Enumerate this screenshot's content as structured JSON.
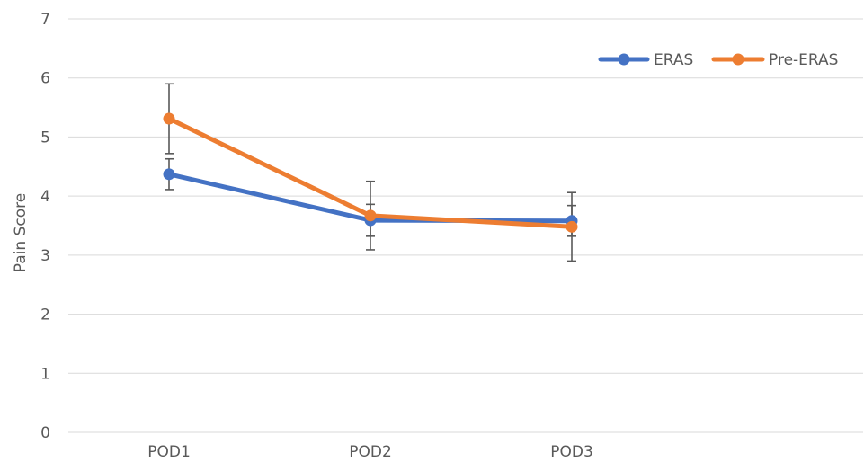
{
  "chart_data": {
    "type": "line",
    "categories": [
      "POD1",
      "POD2",
      "POD3"
    ],
    "ylabel": "Pain Score",
    "xlabel": "",
    "ylim": [
      0,
      7
    ],
    "yticks": [
      0,
      1,
      2,
      3,
      4,
      5,
      6,
      7
    ],
    "grid": true,
    "legend_position": "top-right",
    "series": [
      {
        "name": "ERAS",
        "color": "#4472c4",
        "values": [
          4.37,
          3.59,
          3.58
        ],
        "error": [
          0.26,
          0.27,
          0.26
        ]
      },
      {
        "name": "Pre-ERAS",
        "color": "#ed7d31",
        "values": [
          5.31,
          3.67,
          3.48
        ],
        "error": [
          0.59,
          0.58,
          0.58
        ]
      }
    ]
  }
}
